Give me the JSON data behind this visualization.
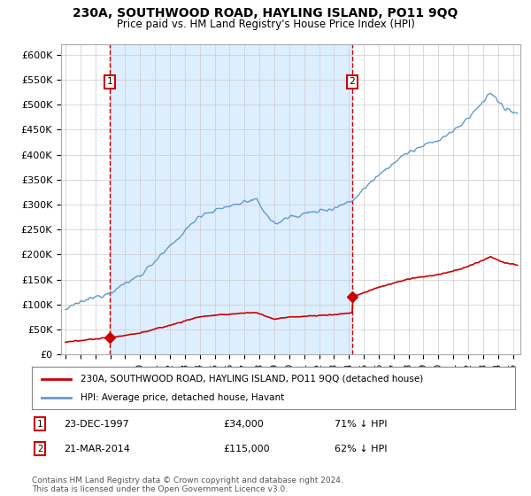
{
  "title": "230A, SOUTHWOOD ROAD, HAYLING ISLAND, PO11 9QQ",
  "subtitle": "Price paid vs. HM Land Registry's House Price Index (HPI)",
  "ylabel_ticks": [
    "£0",
    "£50K",
    "£100K",
    "£150K",
    "£200K",
    "£250K",
    "£300K",
    "£350K",
    "£400K",
    "£450K",
    "£500K",
    "£550K",
    "£600K"
  ],
  "ytick_values": [
    0,
    50000,
    100000,
    150000,
    200000,
    250000,
    300000,
    350000,
    400000,
    450000,
    500000,
    550000,
    600000
  ],
  "ylim": [
    0,
    620000
  ],
  "xlim_start": 1994.7,
  "xlim_end": 2025.5,
  "sale_dates": [
    1997.98,
    2014.22
  ],
  "sale_prices": [
    34000,
    115000
  ],
  "sale_labels": [
    "1",
    "2"
  ],
  "annotation_color": "#cc0000",
  "vline_color": "#cc0000",
  "sale_line_color": "#cc0000",
  "hpi_line_color": "#6699cc",
  "fill_color": "#ddeeff",
  "legend_sale_label": "230A, SOUTHWOOD ROAD, HAYLING ISLAND, PO11 9QQ (detached house)",
  "legend_hpi_label": "HPI: Average price, detached house, Havant",
  "table_rows": [
    {
      "num": "1",
      "date": "23-DEC-1997",
      "price": "£34,000",
      "pct": "71% ↓ HPI"
    },
    {
      "num": "2",
      "date": "21-MAR-2014",
      "price": "£115,000",
      "pct": "62% ↓ HPI"
    }
  ],
  "footnote": "Contains HM Land Registry data © Crown copyright and database right 2024.\nThis data is licensed under the Open Government Licence v3.0.",
  "background_color": "#ffffff",
  "grid_color": "#cccccc",
  "xticks": [
    1995,
    1996,
    1997,
    1998,
    1999,
    2000,
    2001,
    2002,
    2003,
    2004,
    2005,
    2006,
    2007,
    2008,
    2009,
    2010,
    2011,
    2012,
    2013,
    2014,
    2015,
    2016,
    2017,
    2018,
    2019,
    2020,
    2021,
    2022,
    2023,
    2024,
    2025
  ]
}
